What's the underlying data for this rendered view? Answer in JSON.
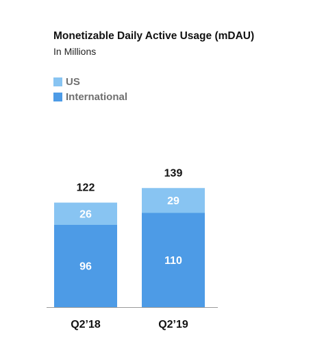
{
  "chart_data": {
    "type": "bar",
    "stacked": true,
    "title": "Monetizable Daily Active Usage (mDAU)",
    "subtitle": "In Millions",
    "categories": [
      "Q2’18",
      "Q2’19"
    ],
    "series": [
      {
        "name": "International",
        "values": [
          96,
          110
        ],
        "color": "#4d9be6"
      },
      {
        "name": "US",
        "values": [
          26,
          29
        ],
        "color": "#88c4f2"
      }
    ],
    "totals": [
      122,
      139
    ],
    "legend_position": "top-left",
    "legend_order": [
      "US",
      "International"
    ],
    "grid": false,
    "xlabel": "",
    "ylabel": ""
  }
}
